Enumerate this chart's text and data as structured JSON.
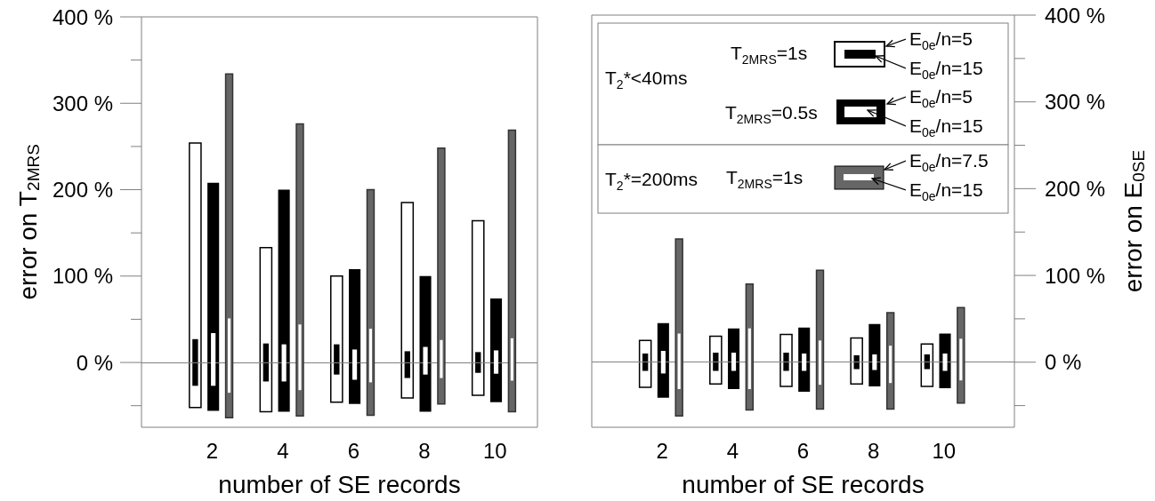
{
  "chart_data": [
    {
      "type": "bar",
      "xlabel": "number of SE records",
      "ylabel": "error on T$_{2MRS}$",
      "x": [
        2,
        4,
        6,
        8,
        10
      ],
      "xlim": [
        0,
        11.2
      ],
      "xticks": [
        2,
        4,
        6,
        8,
        10
      ],
      "ylim": [
        -75,
        400
      ],
      "yticks": [
        {
          "value": -50,
          "label": null
        },
        {
          "value": 0,
          "label": "0 %"
        },
        {
          "value": 50,
          "label": null
        },
        {
          "value": 100,
          "label": "100 %"
        },
        {
          "value": 150,
          "label": null
        },
        {
          "value": 200,
          "label": "200 %"
        },
        {
          "value": 250,
          "label": null
        },
        {
          "value": 300,
          "label": "300 %"
        },
        {
          "value": 350,
          "label": null
        },
        {
          "value": 400,
          "label": "400 %"
        }
      ],
      "ref_lines": [
        {
          "axis": "y",
          "value": 0,
          "label": null,
          "color": "#808080"
        }
      ],
      "series": [
        {
          "color": "#ffffff",
          "base": [
            -52,
            -57,
            -46,
            -41,
            -38
          ],
          "values": [
            306,
            190,
            146,
            226,
            202
          ]
        },
        {
          "color": "#000000",
          "base": [
            -27,
            -22,
            -14,
            -18,
            -12
          ],
          "values": [
            54,
            44,
            35,
            31,
            24
          ]
        },
        {
          "color": "#000000",
          "base": [
            -56,
            -57,
            -48,
            -57,
            -46
          ],
          "values": [
            264,
            257,
            156,
            157,
            120
          ]
        },
        {
          "color": "#ffffff",
          "base": [
            -27,
            -22,
            -20,
            -14,
            -13
          ],
          "values": [
            61,
            43,
            35,
            32,
            27
          ]
        },
        {
          "color": "#666666",
          "base": [
            -64,
            -62,
            -61,
            -48,
            -57
          ],
          "values": [
            398,
            338,
            261,
            296,
            326
          ]
        },
        {
          "color": "#ffffff",
          "base": [
            -35,
            -32,
            -23,
            -18,
            -21
          ],
          "values": [
            86,
            76,
            62,
            44,
            49
          ]
        }
      ]
    },
    {
      "type": "bar",
      "xlabel": "number of SE records",
      "y2label": "error on E$_{0SE}$",
      "x": [
        2,
        4,
        6,
        8,
        10
      ],
      "xlim": [
        0,
        12
      ],
      "xticks": [
        2,
        4,
        6,
        8,
        10
      ],
      "y2lim": [
        -75,
        400
      ],
      "y2ticks": [
        {
          "value": -50,
          "label": null
        },
        {
          "value": 0,
          "label": "0 %"
        },
        {
          "value": 50,
          "label": null
        },
        {
          "value": 100,
          "label": "100 %"
        },
        {
          "value": 150,
          "label": null
        },
        {
          "value": 200,
          "label": "200 %"
        },
        {
          "value": 250,
          "label": null
        },
        {
          "value": 300,
          "label": "300 %"
        },
        {
          "value": 350,
          "label": null
        },
        {
          "value": 400,
          "label": "400 %"
        }
      ],
      "ref_lines": [
        {
          "axis": "y2",
          "value": 0,
          "label": null,
          "color": "#808080"
        }
      ],
      "annotations": [
        "T$_{2}$*<40ms",
        "T$_{2MRS}$=1s",
        "E$_{0e}$/n=5",
        "E$_{0e}$/n=15",
        "T$_{2MRS}$=0.5s",
        "E$_{0e}$/n=5",
        "E$_{0e}$/n=15",
        "T$_{2}$*=200ms",
        "T$_{2MRS}$=1s",
        "E$_{0e}$/n=7.5",
        "E$_{0e}$/n=15"
      ],
      "series": [
        {
          "color": "#ffffff",
          "axis": "y2",
          "base": [
            -29,
            -25,
            -28,
            -25,
            -28
          ],
          "values": [
            54,
            55,
            60,
            53,
            49
          ]
        },
        {
          "color": "#000000",
          "axis": "y2",
          "base": [
            -10,
            -10,
            -10,
            -8,
            -8
          ],
          "values": [
            20,
            21,
            21,
            16,
            17
          ]
        },
        {
          "color": "#000000",
          "axis": "y2",
          "base": [
            -41,
            -31,
            -34,
            -28,
            -30
          ],
          "values": [
            86,
            70,
            74,
            72,
            63
          ]
        },
        {
          "color": "#ffffff",
          "axis": "y2",
          "base": [
            -13,
            -10,
            -10,
            -9,
            -10
          ],
          "values": [
            26,
            21,
            20,
            18,
            20
          ]
        },
        {
          "color": "#666666",
          "axis": "y2",
          "base": [
            -62,
            -55,
            -54,
            -54,
            -47
          ],
          "values": [
            204,
            145,
            160,
            111,
            110
          ]
        },
        {
          "color": "#ffffff",
          "axis": "y2",
          "base": [
            -31,
            -31,
            -26,
            -24,
            -21
          ],
          "values": [
            64,
            70,
            51,
            43,
            48
          ]
        }
      ]
    }
  ]
}
